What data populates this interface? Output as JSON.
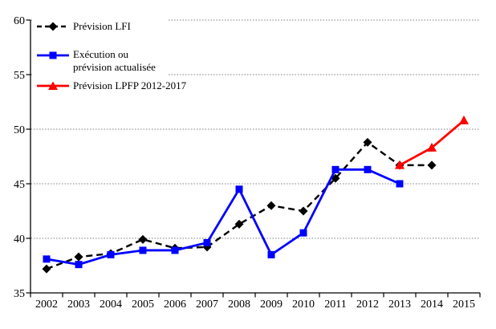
{
  "chart_data": {
    "type": "line",
    "title": "",
    "categories": [
      "2002",
      "2003",
      "2004",
      "2005",
      "2006",
      "2007",
      "2008",
      "2009",
      "2010",
      "2011",
      "2012",
      "2013",
      "2014",
      "2015"
    ],
    "y_axis": {
      "min": 35,
      "max": 60,
      "ticks": [
        35,
        40,
        45,
        50,
        55,
        60
      ]
    },
    "grid": "horizontal dotted gridlines at 40,45,50,55,60",
    "legend_position": "top-left inside plot area",
    "colors": {
      "axis": "#000000",
      "gridline": "#7f7f7f",
      "background": "#ffffff"
    },
    "series": [
      {
        "name": "Prévision LFI",
        "color": "#000000",
        "line_style": "dashed",
        "marker": "diamond",
        "years": [
          "2002",
          "2003",
          "2004",
          "2005",
          "2006",
          "2007",
          "2008",
          "2009",
          "2010",
          "2011",
          "2012",
          "2013",
          "2014"
        ],
        "values": [
          37.2,
          38.3,
          38.6,
          39.9,
          39.1,
          39.2,
          41.3,
          43.0,
          42.5,
          45.5,
          48.8,
          46.7,
          46.7
        ]
      },
      {
        "name": "Exécution ou prévision actualisée",
        "color": "#0000ff",
        "line_style": "solid",
        "marker": "square",
        "years": [
          "2002",
          "2003",
          "2004",
          "2005",
          "2006",
          "2007",
          "2008",
          "2009",
          "2010",
          "2011",
          "2012",
          "2013"
        ],
        "values": [
          38.1,
          37.6,
          38.5,
          38.9,
          38.9,
          39.6,
          44.5,
          38.5,
          40.5,
          46.3,
          46.3,
          45.0
        ]
      },
      {
        "name": "Prévision LPFP 2012-2017",
        "color": "#ff0000",
        "line_style": "solid",
        "marker": "triangle",
        "years": [
          "2013",
          "2014",
          "2015"
        ],
        "values": [
          46.7,
          48.3,
          50.8
        ]
      }
    ]
  }
}
